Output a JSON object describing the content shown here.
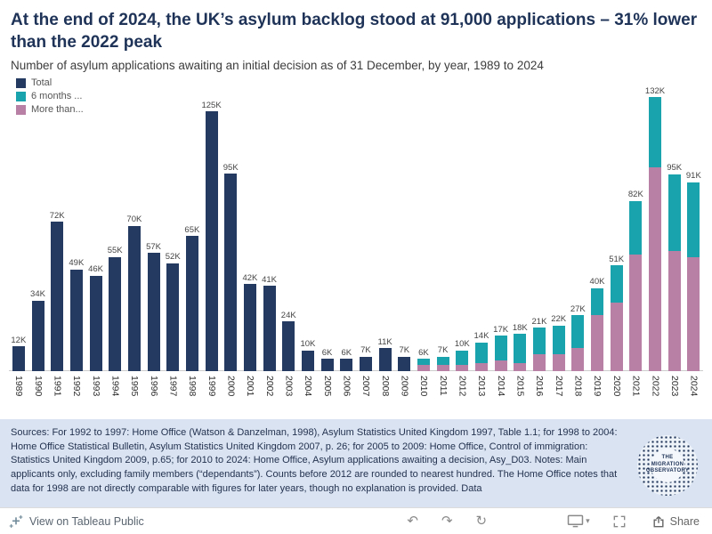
{
  "header": {
    "title": "At the end of 2024, the UK’s asylum backlog stood at 91,000 applications – 31% lower than the 2022 peak",
    "subtitle": "Number of asylum applications awaiting an initial decision as of 31 December, by year, 1989 to 2024"
  },
  "legend": {
    "items": [
      {
        "label": "Total",
        "color": "#253a60"
      },
      {
        "label": "6 months ...",
        "color": "#18a3ad"
      },
      {
        "label": "More than...",
        "color": "#b980a5"
      }
    ]
  },
  "chart_data": {
    "type": "bar",
    "subtype": "stacked",
    "title": "At the end of 2024, the UK’s asylum backlog stood at 91,000 applications – 31% lower than the 2022 peak",
    "subtitle": "Number of asylum applications awaiting an initial decision as of 31 December, by year, 1989 to 2024",
    "unit": "thousands of applications",
    "ylim": [
      0,
      140
    ],
    "grid": false,
    "legend_position": "top-left",
    "categories": [
      "1989",
      "1990",
      "1991",
      "1992",
      "1993",
      "1994",
      "1995",
      "1996",
      "1997",
      "1998",
      "1999",
      "2000",
      "2001",
      "2002",
      "2003",
      "2004",
      "2005",
      "2006",
      "2007",
      "2008",
      "2009",
      "2010",
      "2011",
      "2012",
      "2013",
      "2014",
      "2015",
      "2016",
      "2017",
      "2018",
      "2019",
      "2020",
      "2021",
      "2022",
      "2023",
      "2024"
    ],
    "labels": [
      "12K",
      "34K",
      "72K",
      "49K",
      "46K",
      "55K",
      "70K",
      "57K",
      "52K",
      "65K",
      "125K",
      "95K",
      "42K",
      "41K",
      "24K",
      "10K",
      "6K",
      "6K",
      "7K",
      "11K",
      "7K",
      "6K",
      "7K",
      "10K",
      "14K",
      "17K",
      "18K",
      "21K",
      "22K",
      "27K",
      "40K",
      "51K",
      "82K",
      "132K",
      "95K",
      "91K"
    ],
    "totals": [
      12,
      34,
      72,
      49,
      46,
      55,
      70,
      57,
      52,
      65,
      125,
      95,
      42,
      41,
      24,
      10,
      6,
      6,
      7,
      11,
      7,
      6,
      7,
      10,
      14,
      17,
      18,
      21,
      22,
      27,
      40,
      51,
      82,
      132,
      95,
      91
    ],
    "series": [
      {
        "name": "Total",
        "key": "total",
        "color": "#253a60",
        "values": [
          12,
          34,
          72,
          49,
          46,
          55,
          70,
          57,
          52,
          65,
          125,
          95,
          42,
          41,
          24,
          10,
          6,
          6,
          7,
          11,
          7,
          0,
          0,
          0,
          0,
          0,
          0,
          0,
          0,
          0,
          0,
          0,
          0,
          0,
          0,
          0
        ]
      },
      {
        "name": "6 months ...",
        "key": "six-months-or-less",
        "color": "#18a3ad",
        "values": [
          0,
          0,
          0,
          0,
          0,
          0,
          0,
          0,
          0,
          0,
          0,
          0,
          0,
          0,
          0,
          0,
          0,
          0,
          0,
          0,
          0,
          3,
          4,
          7,
          10,
          12,
          14,
          13,
          14,
          16,
          13,
          18,
          26,
          34,
          37,
          36
        ]
      },
      {
        "name": "More than...",
        "key": "more-than-six-months",
        "color": "#b980a5",
        "values": [
          0,
          0,
          0,
          0,
          0,
          0,
          0,
          0,
          0,
          0,
          0,
          0,
          0,
          0,
          0,
          0,
          0,
          0,
          0,
          0,
          0,
          3,
          3,
          3,
          4,
          5,
          4,
          8,
          8,
          11,
          27,
          33,
          56,
          98,
          58,
          55
        ]
      }
    ]
  },
  "sources": {
    "text": "Sources: For 1992 to 1997: Home Office (Watson & Danzelman, 1998), Asylum Statistics United Kingdom 1997, Table 1.1; for 1998 to 2004: Home Office Statistical Bulletin, Asylum Statistics United Kingdom 2007, p. 26; for 2005 to 2009: Home Office, Control of immigration: Statistics United Kingdom 2009, p.65; for 2010 to 2024: Home Office, Asylum applications awaiting a decision, Asy_D03. Notes: Main applicants only, excluding family members (“dependants”). Counts before 2012 are rounded to nearest hundred. The Home Office notes that data for 1998 are not directly comparable with figures for later years, though no explanation is provided. Data"
  },
  "logo": {
    "text": "THE MIGRATION OBSERVATORY"
  },
  "footer": {
    "view_label": "View on Tableau Public",
    "share_label": "Share"
  }
}
